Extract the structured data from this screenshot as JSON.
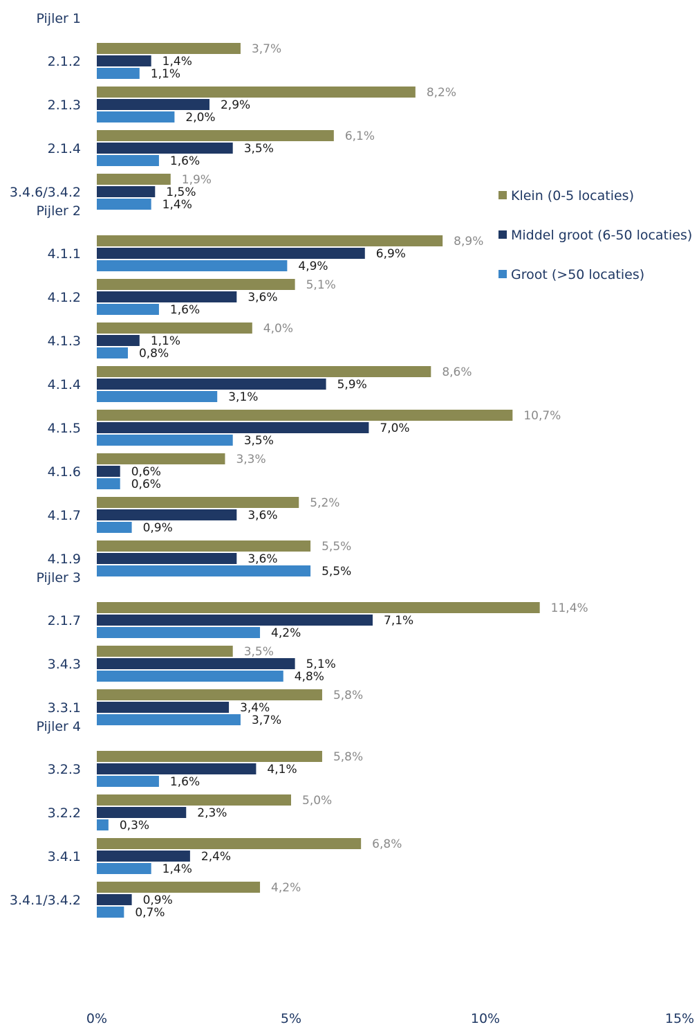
{
  "chart_data": {
    "type": "bar",
    "orientation": "horizontal",
    "xlim": [
      0,
      15
    ],
    "x_ticks": [
      "0%",
      "5%",
      "10%",
      "15%"
    ],
    "legend_position": "right",
    "series": [
      {
        "name": "Klein (0-5 locaties)",
        "color": "#8b8a52"
      },
      {
        "name": "Middel groot (6-50 locaties)",
        "color": "#1f3864"
      },
      {
        "name": "Groot (>50 locaties)",
        "color": "#3b86c8"
      }
    ],
    "groups": [
      {
        "name": "Pijler 1",
        "categories": [
          {
            "label": "2.1.2",
            "values": [
              3.7,
              1.4,
              1.1
            ],
            "labels": [
              "3,7%",
              "1,4%",
              "1,1%"
            ]
          },
          {
            "label": "2.1.3",
            "values": [
              8.2,
              2.9,
              2.0
            ],
            "labels": [
              "8,2%",
              "2,9%",
              "2,0%"
            ]
          },
          {
            "label": "2.1.4",
            "values": [
              6.1,
              3.5,
              1.6
            ],
            "labels": [
              "6,1%",
              "3,5%",
              "1,6%"
            ]
          },
          {
            "label": "3.4.6/3.4.2",
            "values": [
              1.9,
              1.5,
              1.4
            ],
            "labels": [
              "1,9%",
              "1,5%",
              "1,4%"
            ]
          }
        ]
      },
      {
        "name": "Pijler 2",
        "categories": [
          {
            "label": "4.1.1",
            "values": [
              8.9,
              6.9,
              4.9
            ],
            "labels": [
              "8,9%",
              "6,9%",
              "4,9%"
            ]
          },
          {
            "label": "4.1.2",
            "values": [
              5.1,
              3.6,
              1.6
            ],
            "labels": [
              "5,1%",
              "3,6%",
              "1,6%"
            ]
          },
          {
            "label": "4.1.3",
            "values": [
              4.0,
              1.1,
              0.8
            ],
            "labels": [
              "4,0%",
              "1,1%",
              "0,8%"
            ]
          },
          {
            "label": "4.1.4",
            "values": [
              8.6,
              5.9,
              3.1
            ],
            "labels": [
              "8,6%",
              "5,9%",
              "3,1%"
            ]
          },
          {
            "label": "4.1.5",
            "values": [
              10.7,
              7.0,
              3.5
            ],
            "labels": [
              "10,7%",
              "7,0%",
              "3,5%"
            ]
          },
          {
            "label": "4.1.6",
            "values": [
              3.3,
              0.6,
              0.6
            ],
            "labels": [
              "3,3%",
              "0,6%",
              "0,6%"
            ]
          },
          {
            "label": "4.1.7",
            "values": [
              5.2,
              3.6,
              0.9
            ],
            "labels": [
              "5,2%",
              "3,6%",
              "0,9%"
            ]
          },
          {
            "label": "4.1.9",
            "values": [
              5.5,
              3.6,
              5.5
            ],
            "labels": [
              "5,5%",
              "3,6%",
              "5,5%"
            ]
          }
        ]
      },
      {
        "name": "Pijler 3",
        "categories": [
          {
            "label": "2.1.7",
            "values": [
              11.4,
              7.1,
              4.2
            ],
            "labels": [
              "11,4%",
              "7,1%",
              "4,2%"
            ]
          },
          {
            "label": "3.4.3",
            "values": [
              3.5,
              5.1,
              4.8
            ],
            "labels": [
              "3,5%",
              "5,1%",
              "4,8%"
            ]
          },
          {
            "label": "3.3.1",
            "values": [
              5.8,
              3.4,
              3.7
            ],
            "labels": [
              "5,8%",
              "3,4%",
              "3,7%"
            ]
          }
        ]
      },
      {
        "name": "Pijler 4",
        "categories": [
          {
            "label": "3.2.3",
            "values": [
              5.8,
              4.1,
              1.6
            ],
            "labels": [
              "5,8%",
              "4,1%",
              "1,6%"
            ]
          },
          {
            "label": "3.2.2",
            "values": [
              5.0,
              2.3,
              0.3
            ],
            "labels": [
              "5,0%",
              "2,3%",
              "0,3%"
            ]
          },
          {
            "label": "3.4.1",
            "values": [
              6.8,
              2.4,
              1.4
            ],
            "labels": [
              "6,8%",
              "2,4%",
              "1,4%"
            ]
          },
          {
            "label": "3.4.1/3.4.2",
            "values": [
              4.2,
              0.9,
              0.7
            ],
            "labels": [
              "4,2%",
              "0,9%",
              "0,7%"
            ]
          }
        ]
      }
    ]
  }
}
